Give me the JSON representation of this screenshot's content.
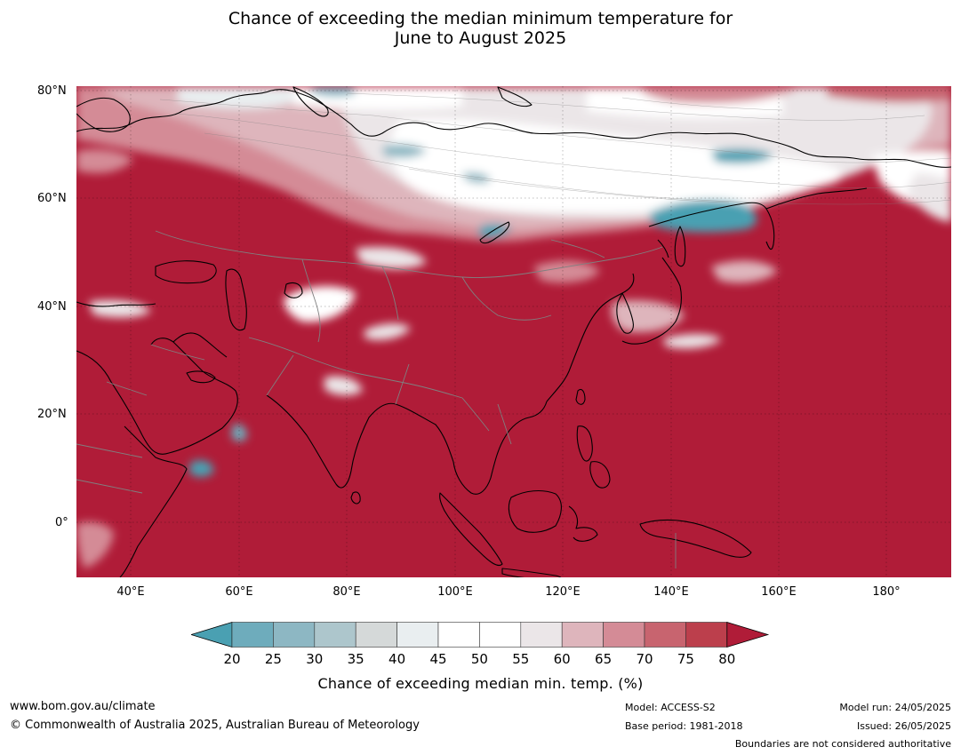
{
  "title": {
    "line1": "Chance of exceeding the median minimum temperature for",
    "line2": "June to August 2025"
  },
  "map": {
    "lat_labels": [
      "80°N",
      "60°N",
      "40°N",
      "20°N",
      "0°"
    ],
    "lon_labels": [
      "40°E",
      "60°E",
      "80°E",
      "100°E",
      "120°E",
      "140°E",
      "160°E",
      "180°"
    ],
    "base_color": "#b01c38",
    "land_boundary_color": "#000000",
    "country_boundary_color": "#808080"
  },
  "colorbar": {
    "ticks": [
      "20",
      "25",
      "30",
      "35",
      "40",
      "45",
      "50",
      "55",
      "60",
      "65",
      "70",
      "75",
      "80"
    ],
    "colors": [
      "#4aa0b2",
      "#6eacbc",
      "#8db7c3",
      "#adc6cc",
      "#d5d9d9",
      "#e9eef0",
      "#ffffff",
      "#ffffff",
      "#ebe6e8",
      "#deb5bc",
      "#d48b96",
      "#c8646f",
      "#bc3f4c",
      "#b01c38"
    ],
    "label": "Chance of exceeding median min. temp. (%)"
  },
  "footer": {
    "website": "www.bom.gov.au/climate",
    "copyright": "© Commonwealth of Australia 2025, Australian Bureau of Meteorology",
    "model": "Model: ACCESS-S2",
    "base_period": "Base period: 1981-2018",
    "model_run": "Model run: 24/05/2025",
    "issued": "Issued: 26/05/2025",
    "disclaimer": "Boundaries are not considered authoritative"
  }
}
